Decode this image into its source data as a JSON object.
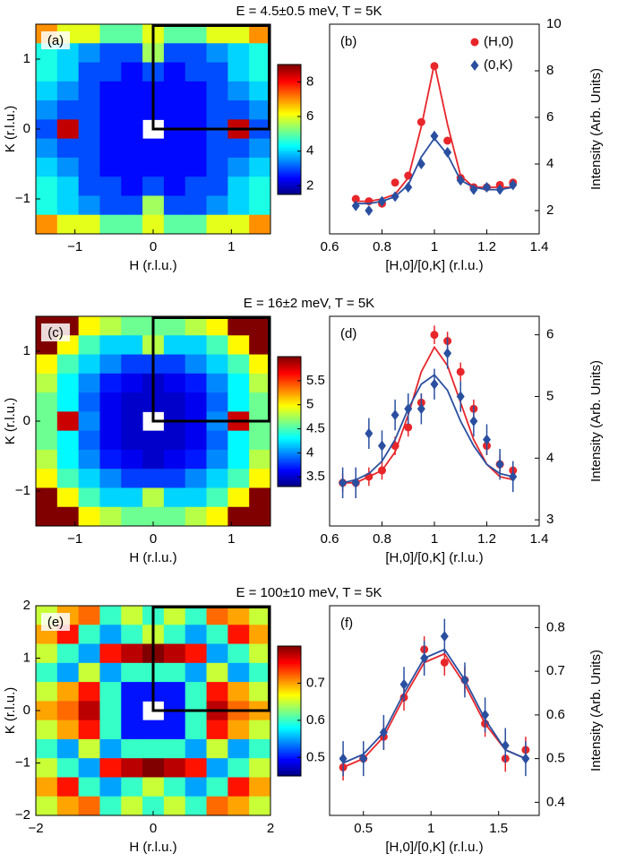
{
  "chart_data": [
    {
      "type": "heatmap",
      "title": "E = 4.5±0.5 meV, T = 5K",
      "label": "(a)",
      "xlabel": "H (r.l.u.)",
      "ylabel": "K (r.l.u.)",
      "xlim": [
        -1.5,
        1.5
      ],
      "xticks": [
        -1,
        0,
        1
      ],
      "ylim": [
        -1.5,
        1.5
      ],
      "yticks": [
        -1,
        0,
        1
      ],
      "zlim": [
        1.5,
        9
      ],
      "zticks": [
        2,
        4,
        6,
        8
      ],
      "z": [
        [
          7,
          6,
          6,
          5,
          5,
          6,
          5,
          5,
          6,
          6,
          7
        ],
        [
          4.5,
          4,
          3.5,
          3,
          3,
          5.5,
          3,
          3,
          3.5,
          4,
          4.5
        ],
        [
          4.5,
          4,
          3,
          3,
          2.5,
          3,
          2.5,
          3,
          3,
          4,
          4.5
        ],
        [
          4,
          3.5,
          3,
          2.5,
          2.5,
          2.5,
          2.5,
          2.5,
          3,
          3.5,
          4
        ],
        [
          3.5,
          3,
          3,
          2.5,
          2.5,
          2.5,
          2.5,
          2.5,
          3,
          3,
          3.5
        ],
        [
          3,
          8.5,
          3,
          2.5,
          2.5,
          null,
          2.5,
          2.5,
          3,
          8.5,
          3
        ],
        [
          3.5,
          3,
          3,
          2.5,
          2.5,
          2.5,
          2.5,
          2.5,
          3,
          3,
          3.5
        ],
        [
          4,
          3.5,
          3,
          2.5,
          2.5,
          2.5,
          2.5,
          2.5,
          3,
          3.5,
          4
        ],
        [
          4.5,
          4,
          3,
          3,
          2.5,
          3,
          2.5,
          3,
          3,
          4,
          4.5
        ],
        [
          4.5,
          4,
          3.5,
          3,
          3,
          5.5,
          3,
          3,
          3.5,
          4,
          4.5
        ],
        [
          7,
          6,
          6,
          5,
          5,
          6,
          5,
          5,
          6,
          6,
          7
        ]
      ]
    },
    {
      "type": "scatter",
      "label": "(b)",
      "xlabel": "[H,0]/[0,K] (r.l.u.)",
      "ylabel": "Intensity (Arb. Units)",
      "xlim": [
        0.6,
        1.4
      ],
      "xticks": [
        0.6,
        0.8,
        1,
        1.2,
        1.4
      ],
      "ylim": [
        1,
        10
      ],
      "yticks": [
        2,
        4,
        6,
        8,
        10
      ],
      "legend": "upper right",
      "x": [
        0.7,
        0.75,
        0.8,
        0.85,
        0.9,
        0.95,
        1.0,
        1.05,
        1.1,
        1.15,
        1.2,
        1.25,
        1.3
      ],
      "series": [
        {
          "name": "(H,0)",
          "color": "#e8262a",
          "marker": "circle",
          "values": [
            2.5,
            2.4,
            2.3,
            3.2,
            3.5,
            5.8,
            8.2,
            5,
            3.4,
            3,
            3,
            3.1,
            3.2
          ],
          "fit": [
            2.4,
            2.4,
            2.5,
            2.7,
            3.4,
            5.6,
            8.3,
            5.7,
            3.5,
            3.0,
            3.0,
            3.0,
            3.0
          ]
        },
        {
          "name": "(0,K)",
          "color": "#2a4fa0",
          "marker": "diamond",
          "values": [
            2.2,
            2.0,
            2.4,
            2.6,
            3.0,
            4.0,
            5.2,
            4.5,
            3.3,
            2.9,
            3,
            2.9,
            3.1
          ],
          "fit": [
            2.3,
            2.3,
            2.4,
            2.6,
            3.1,
            4.3,
            5.1,
            4.4,
            3.3,
            3.0,
            2.9,
            2.9,
            3.0
          ]
        }
      ]
    },
    {
      "type": "heatmap",
      "title": "E = 16±2 meV, T = 5K",
      "label": "(c)",
      "xlabel": "H (r.l.u.)",
      "ylabel": "K (r.l.u.)",
      "xlim": [
        -1.5,
        1.5
      ],
      "xticks": [
        -1,
        0,
        1
      ],
      "ylim": [
        -1.5,
        1.5
      ],
      "yticks": [
        -1,
        0,
        1
      ],
      "zlim": [
        3.3,
        6
      ],
      "zticks": [
        3.5,
        4,
        4.5,
        5,
        5.5
      ],
      "z": [
        [
          6,
          6,
          5,
          4.8,
          4.6,
          4.6,
          4.6,
          4.8,
          5,
          6,
          6
        ],
        [
          6,
          5,
          4.5,
          4.2,
          4.2,
          4.8,
          4.2,
          4.2,
          4.5,
          5,
          6
        ],
        [
          5,
          4.5,
          4.2,
          4,
          3.8,
          3.8,
          3.8,
          4,
          4.2,
          4.5,
          5
        ],
        [
          4.8,
          4.3,
          4,
          3.7,
          3.6,
          3.5,
          3.6,
          3.7,
          4,
          4.3,
          4.8
        ],
        [
          4.6,
          4.3,
          3.9,
          3.6,
          3.5,
          3.5,
          3.5,
          3.6,
          3.9,
          4.3,
          4.6
        ],
        [
          4.6,
          5.8,
          4,
          3.6,
          3.5,
          null,
          3.5,
          3.6,
          4,
          5.8,
          4.6
        ],
        [
          4.6,
          4.3,
          3.9,
          3.6,
          3.5,
          3.5,
          3.5,
          3.6,
          3.9,
          4.3,
          4.6
        ],
        [
          4.8,
          4.3,
          4,
          3.7,
          3.6,
          3.5,
          3.6,
          3.7,
          4,
          4.3,
          4.8
        ],
        [
          5,
          4.5,
          4.2,
          4,
          3.8,
          3.8,
          3.8,
          4,
          4.2,
          4.5,
          5
        ],
        [
          6,
          5,
          4.5,
          4.2,
          4.2,
          4.8,
          4.2,
          4.2,
          4.5,
          5,
          6
        ],
        [
          6,
          6,
          5,
          4.8,
          4.6,
          4.6,
          4.6,
          4.8,
          5,
          6,
          6
        ]
      ]
    },
    {
      "type": "scatter",
      "label": "(d)",
      "xlabel": "[H,0]/[0,K] (r.l.u.)",
      "ylabel": "Intensity (Arb. Units)",
      "xlim": [
        0.6,
        1.4
      ],
      "xticks": [
        0.6,
        0.8,
        1,
        1.2,
        1.4
      ],
      "ylim": [
        2.9,
        6.3
      ],
      "yticks": [
        3,
        4,
        5,
        6
      ],
      "x": [
        0.65,
        0.7,
        0.75,
        0.8,
        0.85,
        0.9,
        0.95,
        1.0,
        1.05,
        1.1,
        1.15,
        1.2,
        1.25,
        1.3
      ],
      "series": [
        {
          "color": "#e8262a",
          "marker": "circle",
          "values": [
            3.6,
            3.6,
            3.7,
            3.8,
            4.2,
            4.5,
            4.9,
            6,
            5.9,
            5.4,
            4.8,
            4.2,
            3.9,
            3.8
          ],
          "errors": [
            0.15,
            0.15,
            0.15,
            0.15,
            0.15,
            0.15,
            0.15,
            0.15,
            0.15,
            0.15,
            0.15,
            0.15,
            0.15,
            0.15
          ],
          "fit": [
            3.6,
            3.6,
            3.7,
            3.8,
            4.1,
            4.7,
            5.4,
            5.8,
            5.5,
            4.9,
            4.3,
            3.9,
            3.7,
            3.65
          ]
        },
        {
          "color": "#2a4fa0",
          "marker": "diamond",
          "values": [
            3.6,
            3.6,
            4.4,
            4.2,
            4.7,
            4.8,
            4.8,
            5.2,
            5.7,
            5.0,
            4.6,
            4.3,
            3.9,
            3.7
          ],
          "errors": [
            0.25,
            0.25,
            0.25,
            0.25,
            0.25,
            0.25,
            0.25,
            0.25,
            0.25,
            0.25,
            0.25,
            0.25,
            0.25,
            0.25
          ],
          "fit": [
            3.6,
            3.65,
            3.75,
            3.95,
            4.3,
            4.8,
            5.2,
            5.35,
            5.1,
            4.6,
            4.2,
            3.9,
            3.75,
            3.7
          ]
        }
      ]
    },
    {
      "type": "heatmap",
      "title": "E = 100±10 meV, T = 5K",
      "label": "(e)",
      "xlabel": "H (r.l.u.)",
      "ylabel": "K (r.l.u.)",
      "xlim": [
        -2,
        2
      ],
      "xticks": [
        -2,
        0,
        2
      ],
      "ylim": [
        -2,
        2
      ],
      "yticks": [
        -2,
        -1,
        0,
        1,
        2
      ],
      "zlim": [
        0.45,
        0.8
      ],
      "zticks": [
        0.5,
        0.6,
        0.7
      ],
      "z": [
        [
          0.65,
          0.7,
          0.72,
          0.6,
          0.65,
          0.6,
          0.65,
          0.6,
          0.72,
          0.7,
          0.65
        ],
        [
          0.7,
          0.75,
          0.6,
          0.55,
          0.6,
          0.65,
          0.6,
          0.55,
          0.6,
          0.75,
          0.7
        ],
        [
          0.65,
          0.6,
          0.55,
          0.75,
          0.78,
          0.8,
          0.78,
          0.75,
          0.55,
          0.6,
          0.65
        ],
        [
          0.6,
          0.55,
          0.65,
          0.55,
          0.6,
          0.6,
          0.6,
          0.55,
          0.65,
          0.55,
          0.6
        ],
        [
          0.65,
          0.7,
          0.75,
          0.6,
          0.5,
          0.5,
          0.5,
          0.6,
          0.75,
          0.7,
          0.65
        ],
        [
          0.7,
          0.72,
          0.78,
          0.6,
          0.5,
          null,
          0.5,
          0.6,
          0.78,
          0.72,
          0.7
        ],
        [
          0.65,
          0.7,
          0.75,
          0.6,
          0.5,
          0.5,
          0.5,
          0.6,
          0.75,
          0.7,
          0.65
        ],
        [
          0.6,
          0.55,
          0.65,
          0.55,
          0.6,
          0.6,
          0.6,
          0.55,
          0.65,
          0.55,
          0.6
        ],
        [
          0.65,
          0.6,
          0.55,
          0.75,
          0.78,
          0.8,
          0.78,
          0.75,
          0.55,
          0.6,
          0.65
        ],
        [
          0.7,
          0.75,
          0.6,
          0.55,
          0.6,
          0.65,
          0.6,
          0.55,
          0.6,
          0.75,
          0.7
        ],
        [
          0.65,
          0.7,
          0.72,
          0.6,
          0.65,
          0.6,
          0.65,
          0.6,
          0.72,
          0.7,
          0.65
        ]
      ]
    },
    {
      "type": "scatter",
      "label": "(f)",
      "xlabel": "[H,0]/[0,K] (r.l.u.)",
      "ylabel": "Intensity (Arb. Units)",
      "xlim": [
        0.25,
        1.8
      ],
      "xticks": [
        0.5,
        1,
        1.5
      ],
      "ylim": [
        0.37,
        0.85
      ],
      "yticks": [
        0.4,
        0.5,
        0.6,
        0.7,
        0.8
      ],
      "x": [
        0.35,
        0.5,
        0.65,
        0.8,
        0.95,
        1.1,
        1.25,
        1.4,
        1.55,
        1.7
      ],
      "series": [
        {
          "color": "#e8262a",
          "marker": "circle",
          "values": [
            0.48,
            0.5,
            0.55,
            0.64,
            0.75,
            0.72,
            0.68,
            0.58,
            0.5,
            0.52
          ],
          "errors": [
            0.03,
            0.03,
            0.03,
            0.03,
            0.03,
            0.03,
            0.03,
            0.03,
            0.03,
            0.03
          ],
          "fit": [
            0.48,
            0.5,
            0.55,
            0.64,
            0.72,
            0.74,
            0.67,
            0.58,
            0.52,
            0.5
          ]
        },
        {
          "color": "#2a4fa0",
          "marker": "diamond",
          "values": [
            0.5,
            0.5,
            0.56,
            0.67,
            0.73,
            0.78,
            0.68,
            0.6,
            0.53,
            0.5
          ],
          "errors": [
            0.04,
            0.04,
            0.04,
            0.04,
            0.04,
            0.04,
            0.04,
            0.04,
            0.04,
            0.04
          ],
          "fit": [
            0.49,
            0.51,
            0.56,
            0.65,
            0.73,
            0.75,
            0.68,
            0.59,
            0.52,
            0.5
          ]
        }
      ]
    }
  ]
}
